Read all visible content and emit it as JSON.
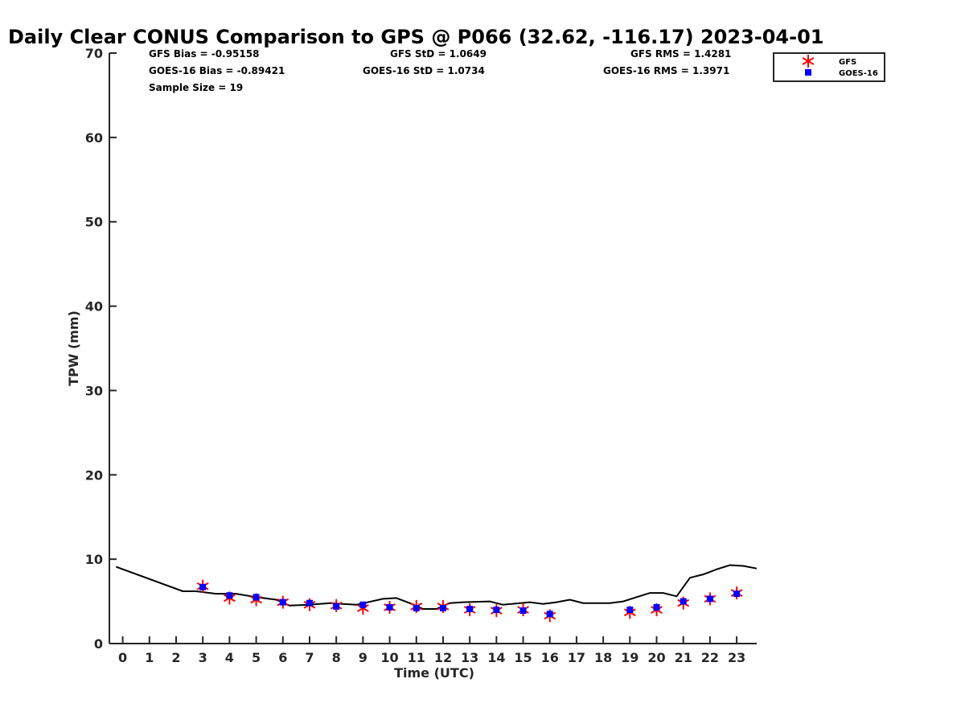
{
  "chart_data": {
    "type": "scatter",
    "title": "Daily Clear CONUS Comparison to GPS @ P066 (32.62, -116.17) 2023-04-01",
    "xlabel": "Time (UTC)",
    "ylabel": "TPW (mm)",
    "xlim": [
      -0.5,
      23.75
    ],
    "ylim": [
      0,
      70
    ],
    "x_ticks": [
      0,
      1,
      2,
      3,
      4,
      5,
      6,
      7,
      8,
      9,
      10,
      11,
      12,
      13,
      14,
      15,
      16,
      17,
      18,
      19,
      20,
      21,
      22,
      23
    ],
    "y_ticks": [
      0,
      10,
      20,
      30,
      40,
      50,
      60,
      70
    ],
    "grid": false,
    "legend_position": "top-right",
    "stats": [
      "GFS Bias = -0.95158",
      "GOES-16 Bias = -0.89421",
      "Sample Size = 19",
      "GFS StD = 1.0649",
      "GOES-16 StD = 1.0734",
      "GFS RMS = 1.4281",
      "GOES-16 RMS = 1.3971"
    ],
    "series": [
      {
        "name": "GPS",
        "kind": "line",
        "color": "#000000",
        "x": [
          -0.25,
          2.25,
          2.75,
          3.5,
          4.25,
          5.0,
          5.75,
          6.25,
          7.0,
          7.75,
          8.75,
          9.75,
          10.25,
          10.75,
          11.25,
          11.75,
          12.25,
          12.75,
          13.75,
          14.25,
          15.25,
          15.75,
          16.25,
          16.75,
          17.25,
          18.25,
          18.75,
          19.25,
          19.75,
          20.25,
          20.75,
          21.25,
          21.75,
          22.25,
          22.75,
          23.25,
          23.75
        ],
        "y": [
          9.1,
          6.2,
          6.2,
          5.9,
          5.9,
          5.5,
          5.2,
          4.5,
          4.6,
          4.8,
          4.6,
          5.3,
          5.4,
          4.8,
          4.1,
          4.1,
          4.8,
          4.9,
          5.0,
          4.6,
          4.9,
          4.7,
          4.9,
          5.2,
          4.8,
          4.8,
          5.0,
          5.5,
          6.0,
          6.0,
          5.6,
          7.8,
          8.2,
          8.8,
          9.3,
          9.2,
          8.9
        ]
      },
      {
        "name": "GFS",
        "kind": "marker",
        "marker": "asterisk",
        "color": "#ff0000",
        "x": [
          3,
          4,
          5,
          6,
          7,
          8,
          9,
          10,
          11,
          12,
          13,
          14,
          15,
          16,
          19,
          20,
          21,
          22,
          23
        ],
        "y": [
          6.8,
          5.4,
          5.2,
          4.9,
          4.6,
          4.5,
          4.2,
          4.3,
          4.4,
          4.4,
          4.0,
          3.9,
          4.0,
          3.3,
          3.7,
          4.0,
          4.8,
          5.3,
          6.0
        ]
      },
      {
        "name": "GOES-16",
        "kind": "marker",
        "marker": "square",
        "color": "#0000ff",
        "x": [
          3,
          4,
          5,
          6,
          7,
          8,
          9,
          10,
          11,
          12,
          13,
          14,
          15,
          16,
          19,
          20,
          21,
          22,
          23
        ],
        "y": [
          6.7,
          5.7,
          5.5,
          4.9,
          4.8,
          4.4,
          4.6,
          4.3,
          4.2,
          4.2,
          4.1,
          4.0,
          3.9,
          3.5,
          4.0,
          4.3,
          5.0,
          5.3,
          5.9
        ]
      }
    ],
    "legend": [
      "GFS",
      "GOES-16"
    ]
  }
}
